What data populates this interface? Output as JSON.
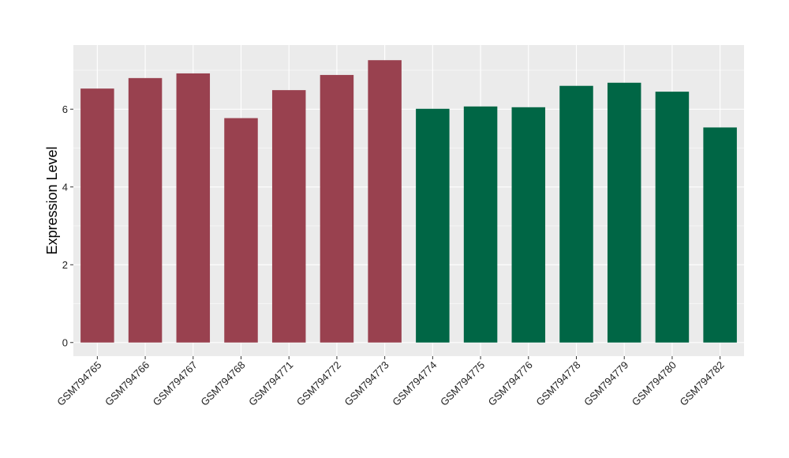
{
  "chart_data": {
    "type": "bar",
    "title": "",
    "xlabel": "",
    "ylabel": "Expression Level",
    "ylim": [
      -0.35,
      7.65
    ],
    "yticks": [
      0,
      2,
      4,
      6
    ],
    "grid": true,
    "categories": [
      "GSM794765",
      "GSM794766",
      "GSM794767",
      "GSM794768",
      "GSM794771",
      "GSM794772",
      "GSM794773",
      "GSM794774",
      "GSM794775",
      "GSM794776",
      "GSM794778",
      "GSM794779",
      "GSM794780",
      "GSM794782"
    ],
    "values": [
      6.53,
      6.8,
      6.92,
      5.77,
      6.49,
      6.88,
      7.26,
      6.01,
      6.07,
      6.05,
      6.6,
      6.68,
      6.45,
      5.53
    ],
    "group_colors": [
      "#99414f",
      "#99414f",
      "#99414f",
      "#99414f",
      "#99414f",
      "#99414f",
      "#99414f",
      "#006645",
      "#006645",
      "#006645",
      "#006645",
      "#006645",
      "#006645",
      "#006645"
    ],
    "panel_background": "#ebebeb",
    "gridline_color": "#ffffff"
  }
}
